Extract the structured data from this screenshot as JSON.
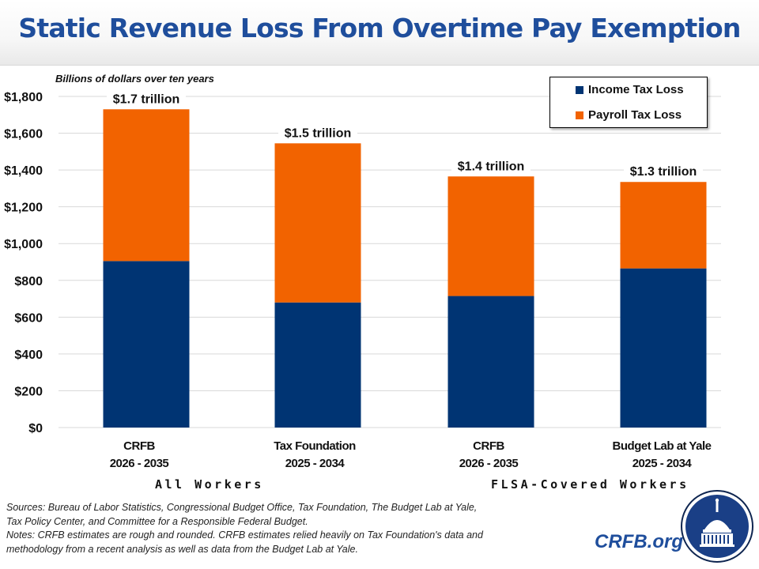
{
  "header": {
    "title": "Static Revenue Loss From Overtime Pay Exemption"
  },
  "chart_data": {
    "type": "bar",
    "stacked": true,
    "title": "Static Revenue Loss From Overtime Pay Exemption",
    "ylabel": "Billions of dollars over ten years",
    "xlabel": "",
    "ylim": [
      0,
      1800
    ],
    "yticks": [
      0,
      200,
      400,
      600,
      800,
      1000,
      1200,
      1400,
      1600,
      1800
    ],
    "ytick_labels": [
      "$0",
      "$200",
      "$400",
      "$600",
      "$800",
      "$1,000",
      "$1,200",
      "$1,400",
      "$1,600",
      "$1,800"
    ],
    "grid": true,
    "legend_position": "top-right",
    "categories": [
      {
        "line1": "CRFB",
        "line2": "2026 - 2035"
      },
      {
        "line1": "Tax Foundation",
        "line2": "2025 - 2034"
      },
      {
        "line1": "CRFB",
        "line2": "2026 - 2035"
      },
      {
        "line1": "Budget Lab at Yale",
        "line2": "2025 - 2034"
      }
    ],
    "series": [
      {
        "name": "Income Tax Loss",
        "color": "#003473",
        "values": [
          905,
          680,
          715,
          865
        ]
      },
      {
        "name": "Payroll Tax Loss",
        "color": "#f26300",
        "values": [
          825,
          865,
          650,
          470
        ]
      }
    ],
    "totals_labels": [
      "$1.7 trillion",
      "$1.5 trillion",
      "$1.4 trillion",
      "$1.3 trillion"
    ],
    "groups": [
      {
        "label": "All   Workers",
        "categories": [
          0,
          1
        ]
      },
      {
        "label": "FLSA-Covered  Workers",
        "categories": [
          2,
          3
        ]
      }
    ]
  },
  "footer": {
    "sources_line1": "Sources: Bureau of Labor Statistics, Congressional Budget Office, Tax Foundation, The Budget Lab at Yale,",
    "sources_line2": "Tax Policy Center, and Committee for a Responsible Federal Budget.",
    "notes_line1": "Notes: CRFB estimates are rough and rounded. CRFB estimates relied heavily on Tax Foundation's data and",
    "notes_line2": "methodology from a recent analysis as well as data from the Budget Lab at Yale.",
    "brand": "CRFB.org",
    "logo_icon": "capitol-dome-logo"
  }
}
